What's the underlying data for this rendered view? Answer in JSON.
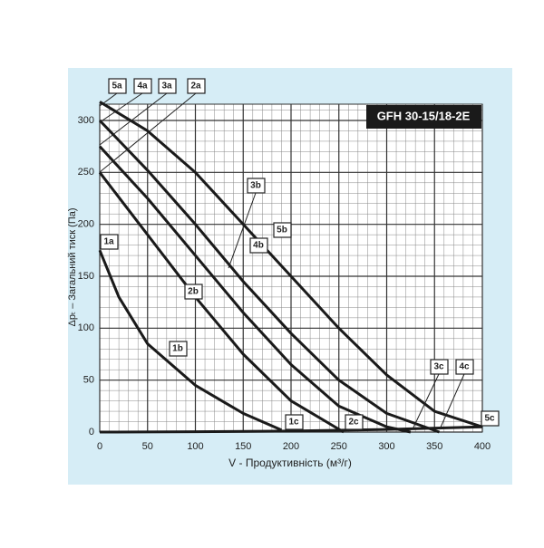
{
  "chart_data": {
    "type": "line",
    "title": "GFH 30-15/18-2E",
    "x_label": "V - Продуктивність  (м³/г)",
    "y_label": "Δpₜ – Загальний тиск (Па)",
    "xlim": [
      0,
      400
    ],
    "ylim": [
      0,
      320
    ],
    "xticks": [
      0,
      50,
      100,
      150,
      200,
      250,
      300,
      350,
      400
    ],
    "yticks": [
      0,
      50,
      100,
      150,
      200,
      250,
      300
    ],
    "grid": true,
    "color": "#1a1a1a",
    "series": [
      {
        "x": [
          0,
          20,
          50,
          100,
          150,
          190
        ],
        "values": [
          175,
          130,
          85,
          45,
          18,
          2
        ]
      },
      {
        "x": [
          0,
          50,
          100,
          150,
          200,
          255
        ],
        "values": [
          250,
          190,
          130,
          75,
          30,
          0
        ]
      },
      {
        "x": [
          0,
          50,
          100,
          150,
          200,
          250,
          300,
          325
        ],
        "values": [
          275,
          225,
          170,
          115,
          65,
          25,
          5,
          0
        ]
      },
      {
        "x": [
          0,
          50,
          100,
          150,
          200,
          250,
          300,
          355
        ],
        "values": [
          300,
          252,
          200,
          145,
          95,
          50,
          18,
          0
        ]
      },
      {
        "x": [
          0,
          50,
          100,
          150,
          200,
          250,
          300,
          350,
          400
        ],
        "values": [
          318,
          290,
          250,
          200,
          150,
          100,
          55,
          20,
          5
        ]
      },
      {
        "x": [
          0,
          100,
          200,
          300,
          400
        ],
        "values": [
          0,
          0.3,
          1,
          2.5,
          5
        ]
      }
    ],
    "annotations": [
      "5a",
      "4a",
      "3a",
      "2a",
      "1a",
      "3b",
      "5b",
      "4b",
      "2b",
      "1b",
      "1c",
      "2c",
      "3c",
      "4c",
      "5c"
    ]
  }
}
